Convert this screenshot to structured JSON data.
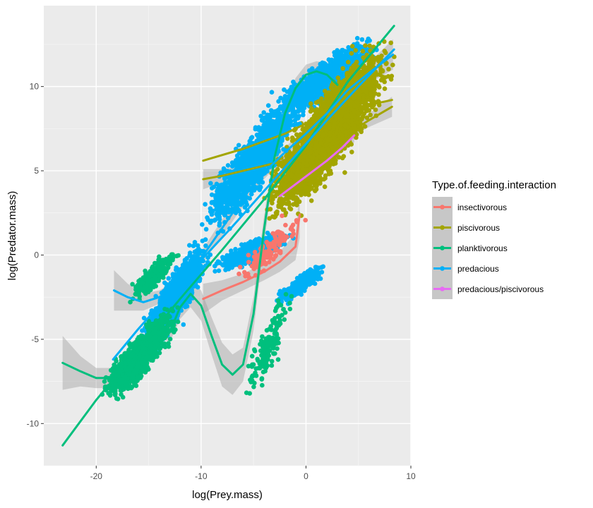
{
  "chart_data": {
    "type": "scatter",
    "xlabel": "log(Prey.mass)",
    "ylabel": "log(Predator.mass)",
    "xlim": [
      -25,
      10
    ],
    "ylim": [
      -12.5,
      14.8
    ],
    "x_ticks": [
      -20,
      -10,
      0,
      10
    ],
    "x_tick_labels": [
      "-20",
      "-10",
      "0",
      "10"
    ],
    "y_ticks": [
      -10,
      -5,
      0,
      5,
      10
    ],
    "y_tick_labels": [
      "-10",
      "-5",
      "0",
      "5",
      "10"
    ],
    "grid": true,
    "legend": {
      "title": "Type.of.feeding.interaction",
      "position": "right",
      "entries": [
        "insectivorous",
        "piscivorous",
        "planktivorous",
        "predacious",
        "predacious/piscivorous"
      ]
    },
    "series": [
      {
        "name": "insectivorous",
        "color": "#F8766D",
        "smooth": [
          [
            -9.8,
            -2.6
          ],
          [
            -8,
            -2.1
          ],
          [
            -6,
            -1.6
          ],
          [
            -4,
            -1.0
          ],
          [
            -2.5,
            -0.4
          ],
          [
            -1,
            0.5
          ],
          [
            -0.6,
            2.4
          ]
        ],
        "band_halfwidth": [
          0.9,
          0.6,
          0.5,
          0.5,
          0.6,
          0.8,
          1.4
        ]
      },
      {
        "name": "piscivorous",
        "color": "#A3A500",
        "smooth": [
          [
            -9.8,
            4.5
          ],
          [
            -8,
            4.7
          ],
          [
            -6,
            5.0
          ],
          [
            -4,
            5.3
          ],
          [
            -2,
            5.6
          ],
          [
            0,
            5.9
          ],
          [
            2,
            6.5
          ],
          [
            4,
            7.2
          ],
          [
            6,
            8.0
          ],
          [
            8.2,
            8.8
          ]
        ],
        "smooth2": [
          [
            -9.8,
            5.6
          ],
          [
            -6,
            6.3
          ],
          [
            -2,
            7.2
          ],
          [
            0,
            7.8
          ],
          [
            2,
            8.2
          ],
          [
            4,
            8.5
          ],
          [
            6,
            8.9
          ],
          [
            8.2,
            9.2
          ]
        ],
        "band_halfwidth": [
          0.6,
          0.4,
          0.3,
          0.3,
          0.3,
          0.3,
          0.3,
          0.3,
          0.4,
          0.6
        ]
      },
      {
        "name": "planktivorous",
        "color": "#00BF7D",
        "smooth": [
          [
            -23.2,
            -6.4
          ],
          [
            -21.5,
            -6.9
          ],
          [
            -20,
            -7.3
          ],
          [
            -18.5,
            -7.3
          ],
          [
            -16.5,
            -6.5
          ],
          [
            -15,
            -5.0
          ],
          [
            -14,
            -4.2
          ],
          [
            -13,
            -4.6
          ],
          [
            -12,
            -3.1
          ],
          [
            -11,
            -2.3
          ],
          [
            -10,
            -3.0
          ],
          [
            -9,
            -4.8
          ],
          [
            -8,
            -6.5
          ],
          [
            -7,
            -7.1
          ],
          [
            -6,
            -6.5
          ],
          [
            -5,
            -3.5
          ],
          [
            -4,
            1.5
          ],
          [
            -3,
            5.8
          ],
          [
            -2,
            8.4
          ],
          [
            -1,
            9.9
          ],
          [
            0,
            10.7
          ],
          [
            1,
            10.9
          ],
          [
            2,
            10.7
          ],
          [
            3,
            10.1
          ]
        ],
        "smooth2": [
          [
            -23.2,
            -11.3
          ],
          [
            -20,
            -8.6
          ],
          [
            -16,
            -5.6
          ],
          [
            -12,
            -2.6
          ],
          [
            -8,
            0.3
          ],
          [
            -4,
            3.3
          ],
          [
            0,
            6.5
          ],
          [
            4,
            10.3
          ],
          [
            8.4,
            13.6
          ]
        ],
        "band_halfwidth": [
          1.6,
          0.9,
          0.6,
          0.6,
          0.6,
          0.6,
          0.6,
          0.6,
          0.7,
          0.8,
          0.9,
          1.1,
          1.3,
          1.2,
          1.0,
          1.0,
          0.8,
          0.7,
          0.6,
          0.6,
          0.6,
          0.6,
          0.7,
          0.9
        ]
      },
      {
        "name": "predacious",
        "color": "#00B0F6",
        "smooth": [
          [
            -18.3,
            -2.1
          ],
          [
            -17,
            -2.5
          ],
          [
            -15.5,
            -2.8
          ],
          [
            -14,
            -2.5
          ],
          [
            -12,
            -1.7
          ],
          [
            -10,
            -0.2
          ],
          [
            -8,
            1.6
          ],
          [
            -6,
            3.4
          ],
          [
            -4,
            4.9
          ],
          [
            -2,
            6.1
          ],
          [
            0,
            7.2
          ],
          [
            2,
            8.4
          ],
          [
            4,
            9.8
          ],
          [
            6,
            10.8
          ],
          [
            8.3,
            11.9
          ]
        ],
        "smooth2": [
          [
            -18.4,
            -6.2
          ],
          [
            -16,
            -4.4
          ],
          [
            -13,
            -2.3
          ],
          [
            -10,
            -0.3
          ],
          [
            -7,
            1.7
          ],
          [
            -4,
            3.8
          ],
          [
            -1,
            5.9
          ],
          [
            2,
            8.0
          ],
          [
            5,
            10.0
          ],
          [
            8.4,
            12.2
          ]
        ],
        "band_halfwidth": [
          1.2,
          0.8,
          0.5,
          0.4,
          0.3,
          0.4,
          0.5,
          0.5,
          0.4,
          0.3,
          0.3,
          0.3,
          0.4,
          0.6,
          0.9
        ]
      },
      {
        "name": "predacious/piscivorous",
        "color": "#E76BF3",
        "smooth": [
          [
            -2.5,
            3.5
          ],
          [
            -1,
            4.2
          ],
          [
            0.5,
            4.9
          ],
          [
            2,
            5.6
          ],
          [
            3.5,
            6.4
          ],
          [
            4.6,
            7.1
          ]
        ],
        "band_halfwidth": [
          0.4,
          0.3,
          0.2,
          0.2,
          0.3,
          0.4
        ]
      }
    ],
    "point_clouds": [
      {
        "series": "predacious",
        "x": [
          -3,
          7
        ],
        "y": [
          8,
          13
        ],
        "n": 1400
      },
      {
        "series": "piscivorous",
        "x": [
          -4,
          8.5
        ],
        "y": [
          2,
          12.8
        ],
        "n": 4200
      },
      {
        "series": "predacious",
        "x": [
          -10,
          0
        ],
        "y": [
          1,
          10
        ],
        "n": 1500
      },
      {
        "series": "predacious",
        "x": [
          -16,
          -9
        ],
        "y": [
          -6,
          1
        ],
        "n": 1700
      },
      {
        "series": "predacious",
        "x": [
          -9,
          -1
        ],
        "y": [
          -1,
          1.5
        ],
        "n": 900
      },
      {
        "series": "predacious",
        "x": [
          -3,
          2
        ],
        "y": [
          -3,
          -0.5
        ],
        "n": 500
      },
      {
        "series": "planktivorous",
        "x": [
          -19.5,
          -12
        ],
        "y": [
          -8.8,
          -3
        ],
        "n": 1400
      },
      {
        "series": "planktivorous",
        "x": [
          -17,
          -12
        ],
        "y": [
          -3,
          0.5
        ],
        "n": 300
      },
      {
        "series": "planktivorous",
        "x": [
          -6,
          -1
        ],
        "y": [
          -9.1,
          -1.5
        ],
        "n": 160
      },
      {
        "series": "insectivorous",
        "x": [
          -7,
          0
        ],
        "y": [
          -2,
          2.5
        ],
        "n": 120
      }
    ]
  }
}
